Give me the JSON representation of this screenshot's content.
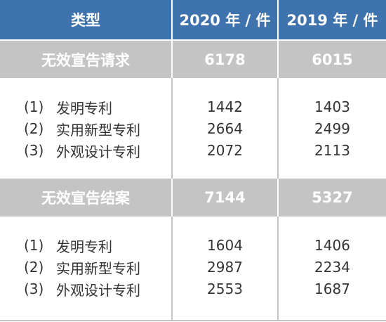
{
  "header": {
    "col_type": "类型",
    "col_2020": "2020 年 / 件",
    "col_2019": "2019 年 / 件"
  },
  "sections": [
    {
      "title": "无效宣告请求",
      "total_2020": "6178",
      "total_2019": "6015",
      "rows": [
        {
          "num": "(1)",
          "label": "发明专利",
          "v2020": "1442",
          "v2019": "1403"
        },
        {
          "num": "(2)",
          "label": "实用新型专利",
          "v2020": "2664",
          "v2019": "2499"
        },
        {
          "num": "(3)",
          "label": "外观设计专利",
          "v2020": "2072",
          "v2019": "2113"
        }
      ]
    },
    {
      "title": "无效宣告结案",
      "total_2020": "7144",
      "total_2019": "5327",
      "rows": [
        {
          "num": "(1)",
          "label": "发明专利",
          "v2020": "1604",
          "v2019": "1406"
        },
        {
          "num": "(2)",
          "label": "实用新型专利",
          "v2020": "2987",
          "v2019": "2234"
        },
        {
          "num": "(3)",
          "label": "外观设计专利",
          "v2020": "2553",
          "v2019": "1687"
        }
      ]
    }
  ]
}
